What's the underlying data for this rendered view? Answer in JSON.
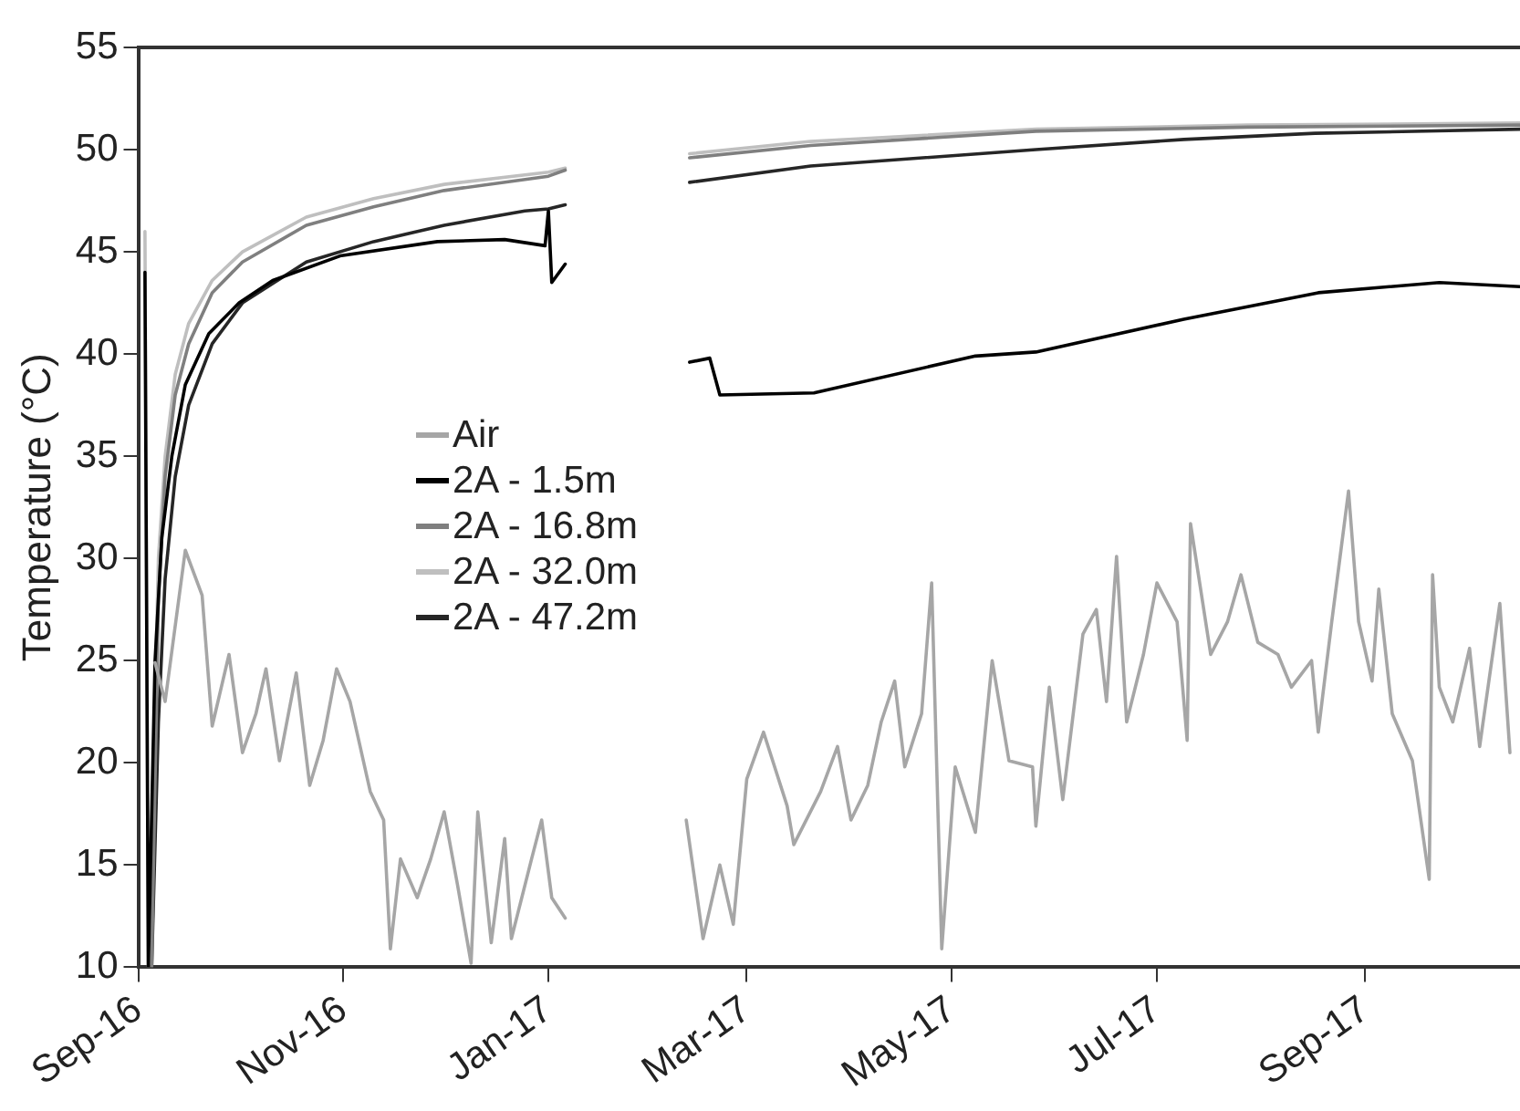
{
  "chart_data": {
    "type": "line",
    "ylabel": "Temperature (°C)",
    "xlim": [
      "2016-09-01",
      "2017-10-17"
    ],
    "ylim": [
      10,
      55
    ],
    "yticks": [
      10,
      15,
      20,
      25,
      30,
      35,
      40,
      45,
      50,
      55
    ],
    "xticks": [
      {
        "value": "2016-09-01",
        "label": "Sep-16"
      },
      {
        "value": "2016-11-01",
        "label": "Nov-16"
      },
      {
        "value": "2017-01-01",
        "label": "Jan-17"
      },
      {
        "value": "2017-03-01",
        "label": "Mar-17"
      },
      {
        "value": "2017-05-01",
        "label": "May-17"
      },
      {
        "value": "2017-07-01",
        "label": "Jul-17"
      },
      {
        "value": "2017-09-01",
        "label": "Sep-17"
      }
    ],
    "grid": false,
    "legend": "center left",
    "marker": "none",
    "line_style": "solid",
    "series": [
      {
        "name": "Air",
        "color": "#a6a6a6",
        "x": [
          "2016-09-06",
          "2016-09-09",
          "2016-09-15",
          "2016-09-20",
          "2016-09-23",
          "2016-09-28",
          "2016-10-02",
          "2016-10-06",
          "2016-10-09",
          "2016-10-13",
          "2016-10-18",
          "2016-10-22",
          "2016-10-26",
          "2016-10-30",
          "2016-11-03",
          "2016-11-09",
          "2016-11-13",
          "2016-11-15",
          "2016-11-18",
          "2016-11-23",
          "2016-11-27",
          "2016-12-01",
          "2016-12-05",
          "2016-12-09",
          "2016-12-11",
          "2016-12-15",
          "2016-12-19",
          "2016-12-21",
          "2016-12-27",
          "2016-12-30",
          "2017-01-02",
          "2017-01-06",
          "2017-01-25",
          "2017-02-11",
          "2017-02-16",
          "2017-02-21",
          "2017-02-25",
          "2017-03-01",
          "2017-03-06",
          "2017-03-13",
          "2017-03-15",
          "2017-03-23",
          "2017-03-28",
          "2017-04-01",
          "2017-04-06",
          "2017-04-10",
          "2017-04-14",
          "2017-04-17",
          "2017-04-22",
          "2017-04-25",
          "2017-04-28",
          "2017-05-02",
          "2017-05-08",
          "2017-05-13",
          "2017-05-18",
          "2017-05-25",
          "2017-05-26",
          "2017-05-30",
          "2017-06-03",
          "2017-06-09",
          "2017-06-13",
          "2017-06-16",
          "2017-06-19",
          "2017-06-22",
          "2017-06-27",
          "2017-07-01",
          "2017-07-07",
          "2017-07-10",
          "2017-07-11",
          "2017-07-17",
          "2017-07-22",
          "2017-07-26",
          "2017-07-31",
          "2017-08-06",
          "2017-08-10",
          "2017-08-16",
          "2017-08-18",
          "2017-08-22",
          "2017-08-27",
          "2017-08-30",
          "2017-09-03",
          "2017-09-05",
          "2017-09-09",
          "2017-09-15",
          "2017-09-20",
          "2017-09-21",
          "2017-09-23",
          "2017-09-27",
          "2017-10-02",
          "2017-10-05",
          "2017-10-11",
          "2017-10-14"
        ],
        "values": [
          24.9,
          23.0,
          30.4,
          28.2,
          21.8,
          25.3,
          20.5,
          22.4,
          24.6,
          20.1,
          24.4,
          18.9,
          21.1,
          24.6,
          23.0,
          18.6,
          17.2,
          10.9,
          15.3,
          13.4,
          15.3,
          17.6,
          14.0,
          10.2,
          17.6,
          11.2,
          16.3,
          11.4,
          15.3,
          17.2,
          13.4,
          12.4,
          null,
          17.2,
          11.4,
          15.0,
          12.1,
          19.2,
          21.5,
          17.9,
          16.0,
          18.6,
          20.8,
          17.2,
          18.9,
          22.0,
          24.0,
          19.8,
          22.4,
          28.8,
          10.9,
          19.8,
          16.6,
          25.0,
          20.1,
          19.8,
          16.9,
          23.7,
          18.2,
          26.3,
          27.5,
          23.0,
          30.1,
          22.0,
          25.3,
          28.8,
          26.9,
          21.1,
          31.7,
          25.3,
          26.9,
          29.2,
          25.9,
          25.3,
          23.7,
          25.0,
          21.5,
          26.9,
          33.3,
          26.9,
          24.0,
          28.5,
          22.4,
          20.1,
          14.3,
          29.2,
          23.7,
          22.0,
          25.6,
          20.8,
          27.8,
          20.5
        ]
      },
      {
        "name": "2A - 1.5m",
        "color": "#000000",
        "x": [
          "2016-09-03",
          "2016-09-04",
          "2016-09-06",
          "2016-09-08",
          "2016-09-11",
          "2016-09-15",
          "2016-09-22",
          "2016-10-01",
          "2016-10-11",
          "2016-10-31",
          "2016-11-29",
          "2016-12-19",
          "2016-12-31",
          "2017-01-01",
          "2017-01-02",
          "2017-01-06",
          "2017-01-25",
          "2017-02-12",
          "2017-02-18",
          "2017-02-21",
          "2017-03-21",
          "2017-05-08",
          "2017-05-26",
          "2017-07-09",
          "2017-08-18",
          "2017-09-23",
          "2017-10-17"
        ],
        "values": [
          44,
          10,
          25,
          31,
          35,
          38.5,
          41,
          42.5,
          43.6,
          44.8,
          45.5,
          45.6,
          45.3,
          47,
          43.5,
          44.4,
          null,
          39.6,
          39.8,
          38.0,
          38.1,
          39.9,
          40.1,
          41.7,
          43.0,
          43.5,
          43.3
        ]
      },
      {
        "name": "2A - 16.8m",
        "color": "#7f7f7f",
        "x": [
          "2016-09-05",
          "2016-09-07",
          "2016-09-09",
          "2016-09-12",
          "2016-09-16",
          "2016-09-23",
          "2016-10-02",
          "2016-10-21",
          "2016-11-10",
          "2016-12-01",
          "2017-01-01",
          "2017-01-06",
          "2017-01-25",
          "2017-02-12",
          "2017-03-20",
          "2017-05-26",
          "2017-07-28",
          "2017-10-17"
        ],
        "values": [
          10,
          28,
          34,
          38,
          40.5,
          43,
          44.5,
          46.3,
          47.2,
          48,
          48.7,
          49,
          null,
          49.6,
          50.2,
          50.9,
          51.1,
          51.2
        ]
      },
      {
        "name": "2A - 32.0m",
        "color": "#bfbfbf",
        "x": [
          "2016-09-03",
          "2016-09-04",
          "2016-09-07",
          "2016-09-09",
          "2016-09-12",
          "2016-09-16",
          "2016-09-23",
          "2016-10-02",
          "2016-10-21",
          "2016-11-10",
          "2016-12-01",
          "2017-01-01",
          "2017-01-06",
          "2017-01-25",
          "2017-02-12",
          "2017-03-20",
          "2017-05-26",
          "2017-07-28",
          "2017-10-17"
        ],
        "values": [
          46,
          10,
          30,
          35,
          39,
          41.5,
          43.6,
          45,
          46.7,
          47.6,
          48.3,
          48.9,
          49.1,
          null,
          49.8,
          50.4,
          51,
          51.2,
          51.3
        ]
      },
      {
        "name": "2A - 47.2m",
        "color": "#262626",
        "x": [
          "2016-09-05",
          "2016-09-07",
          "2016-09-09",
          "2016-09-12",
          "2016-09-16",
          "2016-09-23",
          "2016-10-02",
          "2016-10-21",
          "2016-11-10",
          "2016-12-01",
          "2016-12-25",
          "2017-01-01",
          "2017-01-06",
          "2017-01-25",
          "2017-02-12",
          "2017-03-20",
          "2017-05-26",
          "2017-07-09",
          "2017-08-17",
          "2017-10-17"
        ],
        "values": [
          10,
          22,
          29,
          34,
          37.5,
          40.5,
          42.5,
          44.5,
          45.5,
          46.3,
          47,
          47.1,
          47.3,
          null,
          48.4,
          49.2,
          50,
          50.5,
          50.8,
          51.0
        ]
      }
    ]
  }
}
